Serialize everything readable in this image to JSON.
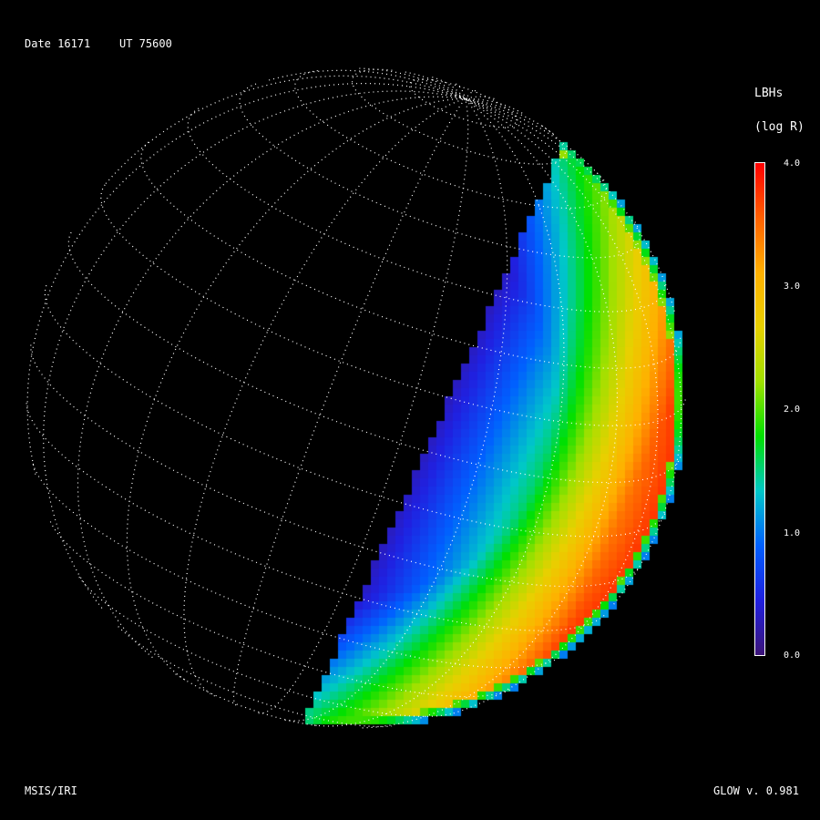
{
  "header": {
    "date_label": "Date 16171",
    "ut_label": "UT 75600"
  },
  "colorbar": {
    "title": "LBHs",
    "units": "(log R)",
    "ticks": [
      "4.0",
      "3.0",
      "2.0",
      "1.0",
      "0.0"
    ],
    "range": [
      0,
      4
    ],
    "colors": [
      "#3c1478",
      "#2020e0",
      "#0060ff",
      "#00c8c8",
      "#00e000",
      "#a0e000",
      "#e8d000",
      "#ffb000",
      "#ff6000",
      "#ff0000"
    ]
  },
  "footer": {
    "left": "MSIS/IRI",
    "right": "GLOW v. 0.981"
  }
}
